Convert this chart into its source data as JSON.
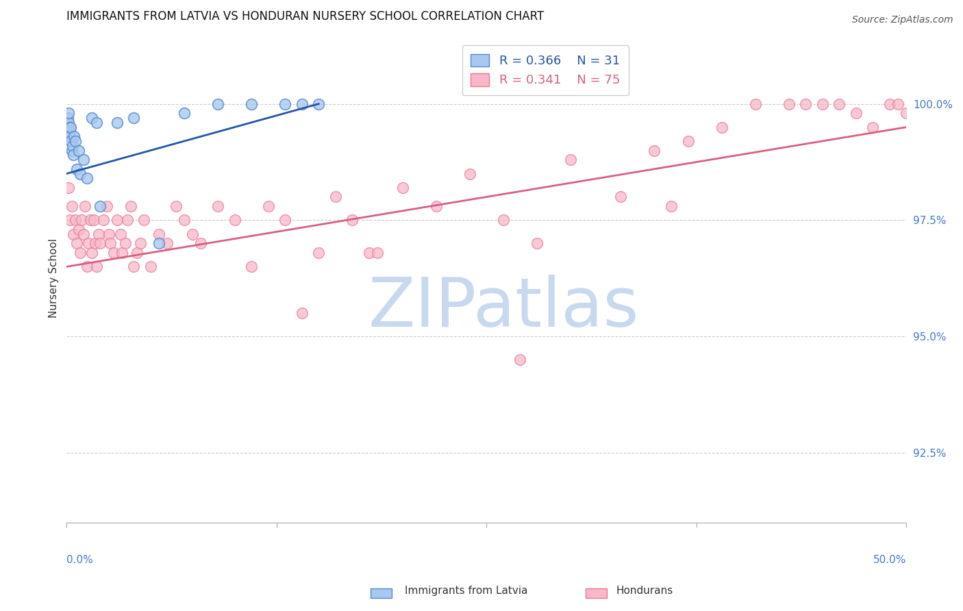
{
  "title": "IMMIGRANTS FROM LATVIA VS HONDURAN NURSERY SCHOOL CORRELATION CHART",
  "source": "Source: ZipAtlas.com",
  "ylabel": "Nursery School",
  "y_ticks": [
    92.5,
    95.0,
    97.5,
    100.0
  ],
  "y_tick_labels": [
    "92.5%",
    "95.0%",
    "97.5%",
    "100.0%"
  ],
  "xlim": [
    0.0,
    50.0
  ],
  "ylim": [
    91.0,
    101.5
  ],
  "legend_r_blue": "0.366",
  "legend_n_blue": "31",
  "legend_r_pink": "0.341",
  "legend_n_pink": "75",
  "blue_fill_color": "#A8C8F0",
  "blue_edge_color": "#5588CC",
  "pink_fill_color": "#F8B8C8",
  "pink_edge_color": "#E87898",
  "blue_line_color": "#2255AA",
  "pink_line_color": "#D86080",
  "axis_label_color": "#4477CC",
  "watermark_color": "#C8D8EE",
  "blue_x": [
    0.05,
    0.08,
    0.1,
    0.12,
    0.15,
    0.18,
    0.2,
    0.22,
    0.25,
    0.3,
    0.35,
    0.4,
    0.45,
    0.5,
    0.6,
    0.7,
    0.8,
    1.0,
    1.2,
    1.5,
    1.8,
    2.0,
    3.0,
    4.0,
    5.5,
    7.0,
    9.0,
    11.0,
    13.0,
    14.0,
    15.0
  ],
  "blue_y": [
    99.5,
    99.7,
    99.6,
    99.8,
    99.4,
    99.5,
    99.3,
    99.5,
    99.2,
    99.0,
    99.1,
    98.9,
    99.3,
    99.2,
    98.6,
    99.0,
    98.5,
    98.8,
    98.4,
    99.7,
    99.6,
    97.8,
    99.6,
    99.7,
    97.0,
    99.8,
    100.0,
    100.0,
    100.0,
    100.0,
    100.0
  ],
  "pink_x": [
    0.1,
    0.2,
    0.3,
    0.4,
    0.5,
    0.6,
    0.7,
    0.8,
    0.9,
    1.0,
    1.1,
    1.2,
    1.3,
    1.4,
    1.5,
    1.6,
    1.7,
    1.8,
    1.9,
    2.0,
    2.2,
    2.4,
    2.5,
    2.6,
    2.8,
    3.0,
    3.2,
    3.3,
    3.5,
    3.6,
    3.8,
    4.0,
    4.2,
    4.4,
    4.6,
    5.0,
    5.5,
    6.0,
    6.5,
    7.0,
    7.5,
    8.0,
    9.0,
    10.0,
    11.0,
    12.0,
    13.0,
    14.0,
    15.0,
    16.0,
    17.0,
    18.0,
    20.0,
    22.0,
    24.0,
    26.0,
    28.0,
    30.0,
    33.0,
    35.0,
    37.0,
    39.0,
    41.0,
    43.0,
    44.0,
    45.0,
    46.0,
    47.0,
    48.0,
    49.0,
    49.5,
    50.0,
    18.5,
    27.0,
    36.0
  ],
  "pink_y": [
    98.2,
    97.5,
    97.8,
    97.2,
    97.5,
    97.0,
    97.3,
    96.8,
    97.5,
    97.2,
    97.8,
    96.5,
    97.0,
    97.5,
    96.8,
    97.5,
    97.0,
    96.5,
    97.2,
    97.0,
    97.5,
    97.8,
    97.2,
    97.0,
    96.8,
    97.5,
    97.2,
    96.8,
    97.0,
    97.5,
    97.8,
    96.5,
    96.8,
    97.0,
    97.5,
    96.5,
    97.2,
    97.0,
    97.8,
    97.5,
    97.2,
    97.0,
    97.8,
    97.5,
    96.5,
    97.8,
    97.5,
    95.5,
    96.8,
    98.0,
    97.5,
    96.8,
    98.2,
    97.8,
    98.5,
    97.5,
    97.0,
    98.8,
    98.0,
    99.0,
    99.2,
    99.5,
    100.0,
    100.0,
    100.0,
    100.0,
    100.0,
    99.8,
    99.5,
    100.0,
    100.0,
    99.8,
    96.8,
    94.5,
    97.8
  ],
  "blue_trend_x": [
    0.0,
    15.0
  ],
  "blue_trend_y": [
    98.5,
    100.0
  ],
  "pink_trend_x": [
    0.0,
    50.0
  ],
  "pink_trend_y": [
    96.5,
    99.5
  ]
}
